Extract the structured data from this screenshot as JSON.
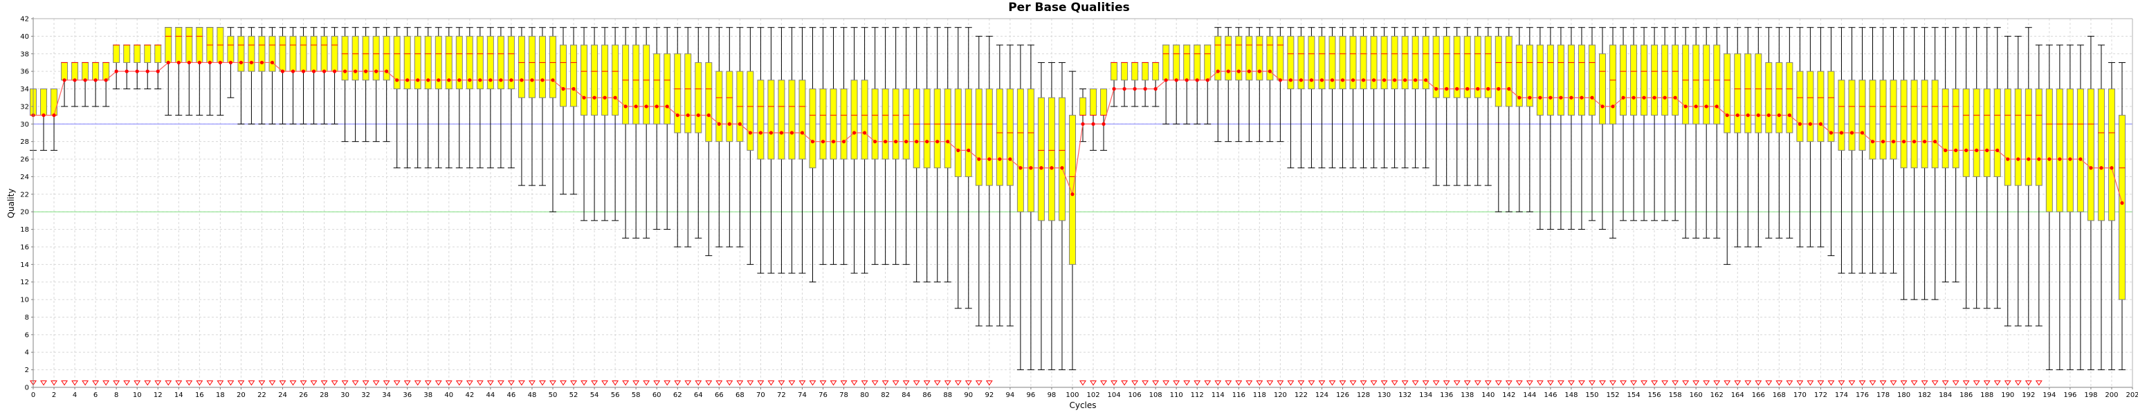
{
  "chart_data": {
    "type": "box",
    "title": "Per Base Qualities",
    "xlabel": "Cycles",
    "ylabel": "Quality",
    "xlim": [
      0,
      202
    ],
    "ylim": [
      0,
      42
    ],
    "x_ticks_step": 2,
    "y_ticks_step": 2,
    "grid": true,
    "reference_lines": [
      {
        "y": 30,
        "color": "#8080ff"
      },
      {
        "y": 20,
        "color": "#80e080"
      }
    ],
    "colors": {
      "box_fill": "#ffff00",
      "box_border": "#808080",
      "median": "#ff0000",
      "mean_line": "#ff6060",
      "mean_marker": "#ff0000",
      "whisker": "#000000",
      "outlier_marker": "#ff0000",
      "grid": "#d8d8d8",
      "axis": "#808080"
    },
    "series_note": "Each entry: [cycle_start, cycle_end, lower_whisker, q1, median, q3, upper_whisker, mean]",
    "groups": [
      [
        0,
        2,
        27,
        31,
        31,
        34,
        34,
        31
      ],
      [
        3,
        7,
        32,
        35,
        37,
        37,
        37,
        35
      ],
      [
        8,
        12,
        34,
        37,
        39,
        39,
        39,
        36
      ],
      [
        13,
        16,
        31,
        37,
        40,
        41,
        41,
        37
      ],
      [
        17,
        18,
        31,
        37,
        39,
        41,
        41,
        37
      ],
      [
        19,
        19,
        33,
        37,
        39,
        40,
        41,
        37
      ],
      [
        20,
        23,
        30,
        36,
        39,
        40,
        41,
        37
      ],
      [
        24,
        29,
        30,
        36,
        39,
        40,
        41,
        36
      ],
      [
        30,
        34,
        28,
        35,
        38,
        40,
        41,
        36
      ],
      [
        35,
        46,
        25,
        34,
        38,
        40,
        41,
        35
      ],
      [
        47,
        49,
        23,
        33,
        37,
        40,
        41,
        35
      ],
      [
        50,
        50,
        20,
        33,
        37,
        40,
        41,
        35
      ],
      [
        51,
        52,
        22,
        32,
        37,
        39,
        41,
        34
      ],
      [
        53,
        56,
        19,
        31,
        36,
        39,
        41,
        33
      ],
      [
        57,
        59,
        17,
        30,
        35,
        39,
        41,
        32
      ],
      [
        60,
        61,
        18,
        30,
        35,
        38,
        41,
        32
      ],
      [
        62,
        63,
        16,
        29,
        34,
        38,
        41,
        31
      ],
      [
        64,
        64,
        17,
        29,
        34,
        37,
        41,
        31
      ],
      [
        65,
        65,
        15,
        28,
        34,
        37,
        41,
        31
      ],
      [
        66,
        67,
        16,
        28,
        33,
        36,
        41,
        30
      ],
      [
        68,
        68,
        16,
        28,
        32,
        36,
        41,
        30
      ],
      [
        69,
        69,
        14,
        27,
        32,
        36,
        41,
        29
      ],
      [
        70,
        74,
        13,
        26,
        32,
        35,
        41,
        29
      ],
      [
        75,
        75,
        12,
        25,
        31,
        34,
        41,
        28
      ],
      [
        76,
        78,
        14,
        26,
        31,
        34,
        41,
        28
      ],
      [
        79,
        80,
        13,
        26,
        31,
        35,
        41,
        29
      ],
      [
        81,
        84,
        14,
        26,
        31,
        34,
        41,
        28
      ],
      [
        85,
        88,
        12,
        25,
        30,
        34,
        41,
        28
      ],
      [
        89,
        90,
        9,
        24,
        30,
        34,
        41,
        27
      ],
      [
        91,
        92,
        7,
        23,
        30,
        34,
        40,
        26
      ],
      [
        93,
        94,
        7,
        23,
        29,
        34,
        39,
        26
      ],
      [
        95,
        96,
        2,
        20,
        29,
        34,
        39,
        25
      ],
      [
        97,
        98,
        2,
        19,
        27,
        33,
        37,
        25
      ],
      [
        99,
        99,
        2,
        19,
        27,
        33,
        37,
        25
      ],
      [
        100,
        100,
        2,
        14,
        24,
        31,
        36,
        22
      ],
      [
        101,
        101,
        28,
        31,
        31,
        33,
        34,
        30
      ],
      [
        102,
        103,
        27,
        31,
        31,
        34,
        34,
        30
      ],
      [
        104,
        108,
        32,
        35,
        37,
        37,
        37,
        34
      ],
      [
        109,
        113,
        30,
        35,
        38,
        39,
        39,
        35
      ],
      [
        114,
        119,
        28,
        35,
        39,
        40,
        41,
        36
      ],
      [
        120,
        120,
        28,
        35,
        39,
        40,
        41,
        35
      ],
      [
        121,
        134,
        25,
        34,
        38,
        40,
        41,
        35
      ],
      [
        135,
        140,
        23,
        33,
        38,
        40,
        41,
        34
      ],
      [
        141,
        142,
        20,
        32,
        37,
        40,
        41,
        34
      ],
      [
        143,
        144,
        20,
        32,
        37,
        39,
        41,
        33
      ],
      [
        145,
        149,
        18,
        31,
        37,
        39,
        41,
        33
      ],
      [
        150,
        150,
        19,
        31,
        37,
        39,
        41,
        33
      ],
      [
        151,
        151,
        18,
        30,
        36,
        38,
        41,
        32
      ],
      [
        152,
        152,
        17,
        30,
        35,
        39,
        41,
        32
      ],
      [
        153,
        158,
        19,
        31,
        36,
        39,
        41,
        33
      ],
      [
        159,
        162,
        17,
        30,
        35,
        39,
        41,
        32
      ],
      [
        163,
        163,
        14,
        29,
        35,
        38,
        41,
        31
      ],
      [
        164,
        166,
        16,
        29,
        34,
        38,
        41,
        31
      ],
      [
        167,
        169,
        17,
        29,
        34,
        37,
        41,
        31
      ],
      [
        170,
        172,
        16,
        28,
        33,
        36,
        41,
        30
      ],
      [
        173,
        173,
        15,
        28,
        33,
        36,
        41,
        29
      ],
      [
        174,
        176,
        13,
        27,
        32,
        35,
        41,
        29
      ],
      [
        177,
        179,
        13,
        26,
        32,
        35,
        41,
        28
      ],
      [
        180,
        183,
        10,
        25,
        32,
        35,
        41,
        28
      ],
      [
        184,
        185,
        12,
        25,
        32,
        34,
        41,
        27
      ],
      [
        186,
        189,
        9,
        24,
        31,
        34,
        41,
        27
      ],
      [
        190,
        191,
        7,
        23,
        31,
        34,
        40,
        26
      ],
      [
        192,
        192,
        7,
        23,
        31,
        34,
        41,
        26
      ],
      [
        193,
        193,
        7,
        23,
        31,
        34,
        39,
        26
      ],
      [
        194,
        197,
        2,
        20,
        30,
        34,
        39,
        26
      ],
      [
        198,
        198,
        2,
        19,
        30,
        34,
        40,
        25
      ],
      [
        199,
        199,
        2,
        19,
        29,
        34,
        39,
        25
      ],
      [
        200,
        200,
        2,
        19,
        29,
        34,
        37,
        25
      ],
      [
        201,
        201,
        2,
        10,
        25,
        31,
        37,
        21
      ]
    ],
    "outlier_markers": {
      "value": 0.5,
      "symbol": "down-triangle",
      "cycle_ranges": [
        [
          0,
          92
        ],
        [
          101,
          193
        ]
      ]
    }
  }
}
